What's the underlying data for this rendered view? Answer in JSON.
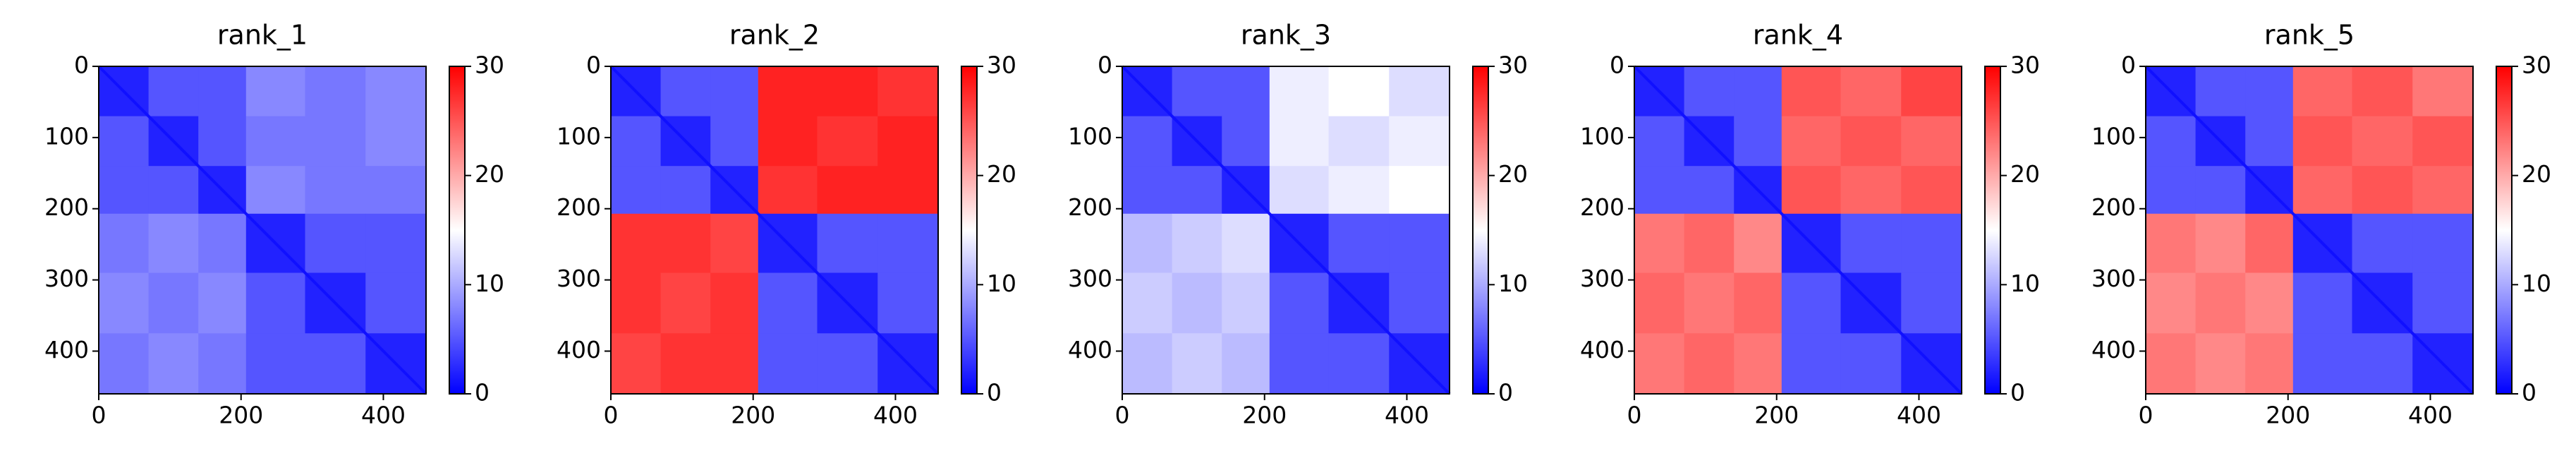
{
  "chart_data": [
    {
      "type": "heatmap",
      "title": "rank_1",
      "colormap": "bwr",
      "clim": [
        0,
        30
      ],
      "cticks": [
        0,
        10,
        20,
        30
      ],
      "xlim": [
        0,
        460
      ],
      "ylim": [
        460,
        0
      ],
      "xticks": [
        0,
        200,
        400
      ],
      "yticks": [
        0,
        100,
        200,
        300,
        400
      ],
      "bins": [
        0,
        70,
        140,
        207,
        290,
        375,
        460
      ],
      "values": [
        [
          2,
          5,
          5,
          8,
          7,
          8
        ],
        [
          5,
          2,
          5,
          7,
          7,
          8
        ],
        [
          5,
          5,
          2,
          8,
          7,
          7
        ],
        [
          7,
          8,
          7,
          2,
          5,
          5
        ],
        [
          8,
          7,
          8,
          5,
          2,
          5
        ],
        [
          7,
          8,
          7,
          5,
          5,
          2
        ]
      ]
    },
    {
      "type": "heatmap",
      "title": "rank_2",
      "colormap": "bwr",
      "clim": [
        0,
        30
      ],
      "cticks": [
        0,
        10,
        20,
        30
      ],
      "xlim": [
        0,
        460
      ],
      "ylim": [
        460,
        0
      ],
      "xticks": [
        0,
        200,
        400
      ],
      "yticks": [
        0,
        100,
        200,
        300,
        400
      ],
      "bins": [
        0,
        70,
        140,
        207,
        290,
        375,
        460
      ],
      "values": [
        [
          2,
          5,
          5,
          28,
          28,
          27
        ],
        [
          5,
          2,
          5,
          28,
          27,
          28
        ],
        [
          5,
          5,
          2,
          27,
          28,
          28
        ],
        [
          27,
          27,
          26,
          2,
          5,
          5
        ],
        [
          27,
          26,
          27,
          5,
          2,
          5
        ],
        [
          26,
          27,
          27,
          5,
          5,
          2
        ]
      ]
    },
    {
      "type": "heatmap",
      "title": "rank_3",
      "colormap": "bwr",
      "clim": [
        0,
        30
      ],
      "cticks": [
        0,
        10,
        20,
        30
      ],
      "xlim": [
        0,
        460
      ],
      "ylim": [
        460,
        0
      ],
      "xticks": [
        0,
        200,
        400
      ],
      "yticks": [
        0,
        100,
        200,
        300,
        400
      ],
      "bins": [
        0,
        70,
        140,
        207,
        290,
        375,
        460
      ],
      "values": [
        [
          2,
          5,
          5,
          14,
          15,
          13
        ],
        [
          5,
          2,
          5,
          14,
          13,
          14
        ],
        [
          5,
          5,
          2,
          13,
          14,
          15
        ],
        [
          11,
          12,
          13,
          2,
          5,
          5
        ],
        [
          12,
          11,
          12,
          5,
          2,
          5
        ],
        [
          11,
          12,
          11,
          5,
          5,
          2
        ]
      ]
    },
    {
      "type": "heatmap",
      "title": "rank_4",
      "colormap": "bwr",
      "clim": [
        0,
        30
      ],
      "cticks": [
        0,
        10,
        20,
        30
      ],
      "xlim": [
        0,
        460
      ],
      "ylim": [
        460,
        0
      ],
      "xticks": [
        0,
        200,
        400
      ],
      "yticks": [
        0,
        100,
        200,
        300,
        400
      ],
      "bins": [
        0,
        70,
        140,
        207,
        290,
        375,
        460
      ],
      "values": [
        [
          2,
          5,
          5,
          25,
          24,
          26
        ],
        [
          5,
          2,
          5,
          24,
          25,
          24
        ],
        [
          5,
          5,
          2,
          25,
          24,
          25
        ],
        [
          23,
          24,
          22,
          2,
          5,
          5
        ],
        [
          24,
          23,
          24,
          5,
          2,
          5
        ],
        [
          23,
          24,
          23,
          5,
          5,
          2
        ]
      ]
    },
    {
      "type": "heatmap",
      "title": "rank_5",
      "colormap": "bwr",
      "clim": [
        0,
        30
      ],
      "cticks": [
        0,
        10,
        20,
        30
      ],
      "xlim": [
        0,
        460
      ],
      "ylim": [
        460,
        0
      ],
      "xticks": [
        0,
        200,
        400
      ],
      "yticks": [
        0,
        100,
        200,
        300,
        400
      ],
      "bins": [
        0,
        70,
        140,
        207,
        290,
        375,
        460
      ],
      "values": [
        [
          2,
          5,
          5,
          24,
          25,
          23
        ],
        [
          5,
          2,
          5,
          25,
          24,
          25
        ],
        [
          5,
          5,
          2,
          24,
          25,
          24
        ],
        [
          23,
          22,
          24,
          2,
          5,
          5
        ],
        [
          22,
          23,
          22,
          5,
          2,
          5
        ],
        [
          23,
          22,
          23,
          5,
          5,
          2
        ]
      ]
    }
  ]
}
